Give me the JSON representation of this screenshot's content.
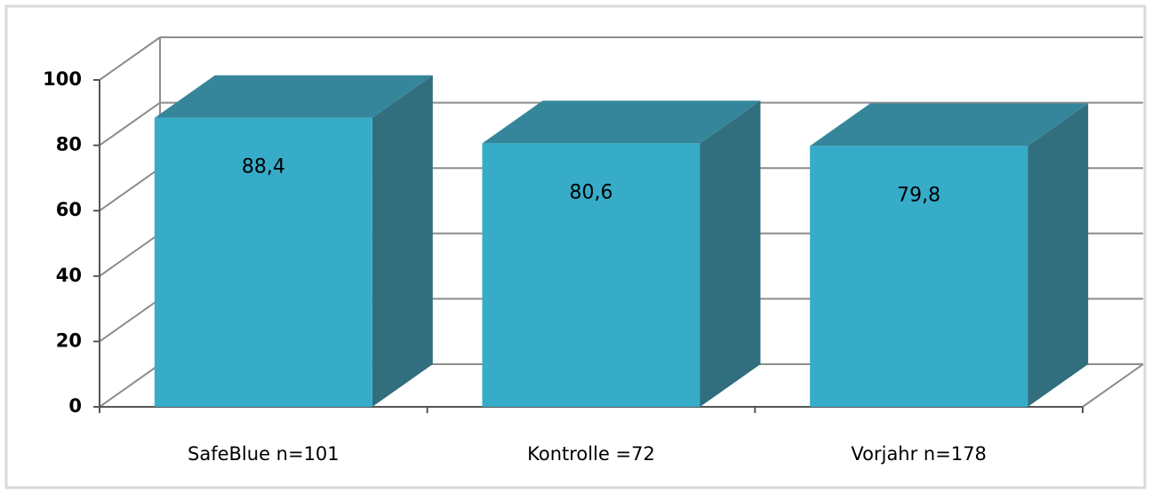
{
  "chart_data": {
    "type": "bar3d",
    "categories": [
      "SafeBlue n=101",
      "Kontrolle =72",
      "Vorjahr n=178"
    ],
    "values": [
      88.4,
      80.6,
      79.8
    ],
    "value_labels": [
      "88,4",
      "80,6",
      "79,8"
    ],
    "colors": {
      "front": "#36acc9",
      "top": "#35869a",
      "side": "#316e7e"
    },
    "ylim": [
      0,
      100
    ],
    "yticks": [
      0,
      20,
      40,
      60,
      80,
      100
    ],
    "grid": true
  }
}
